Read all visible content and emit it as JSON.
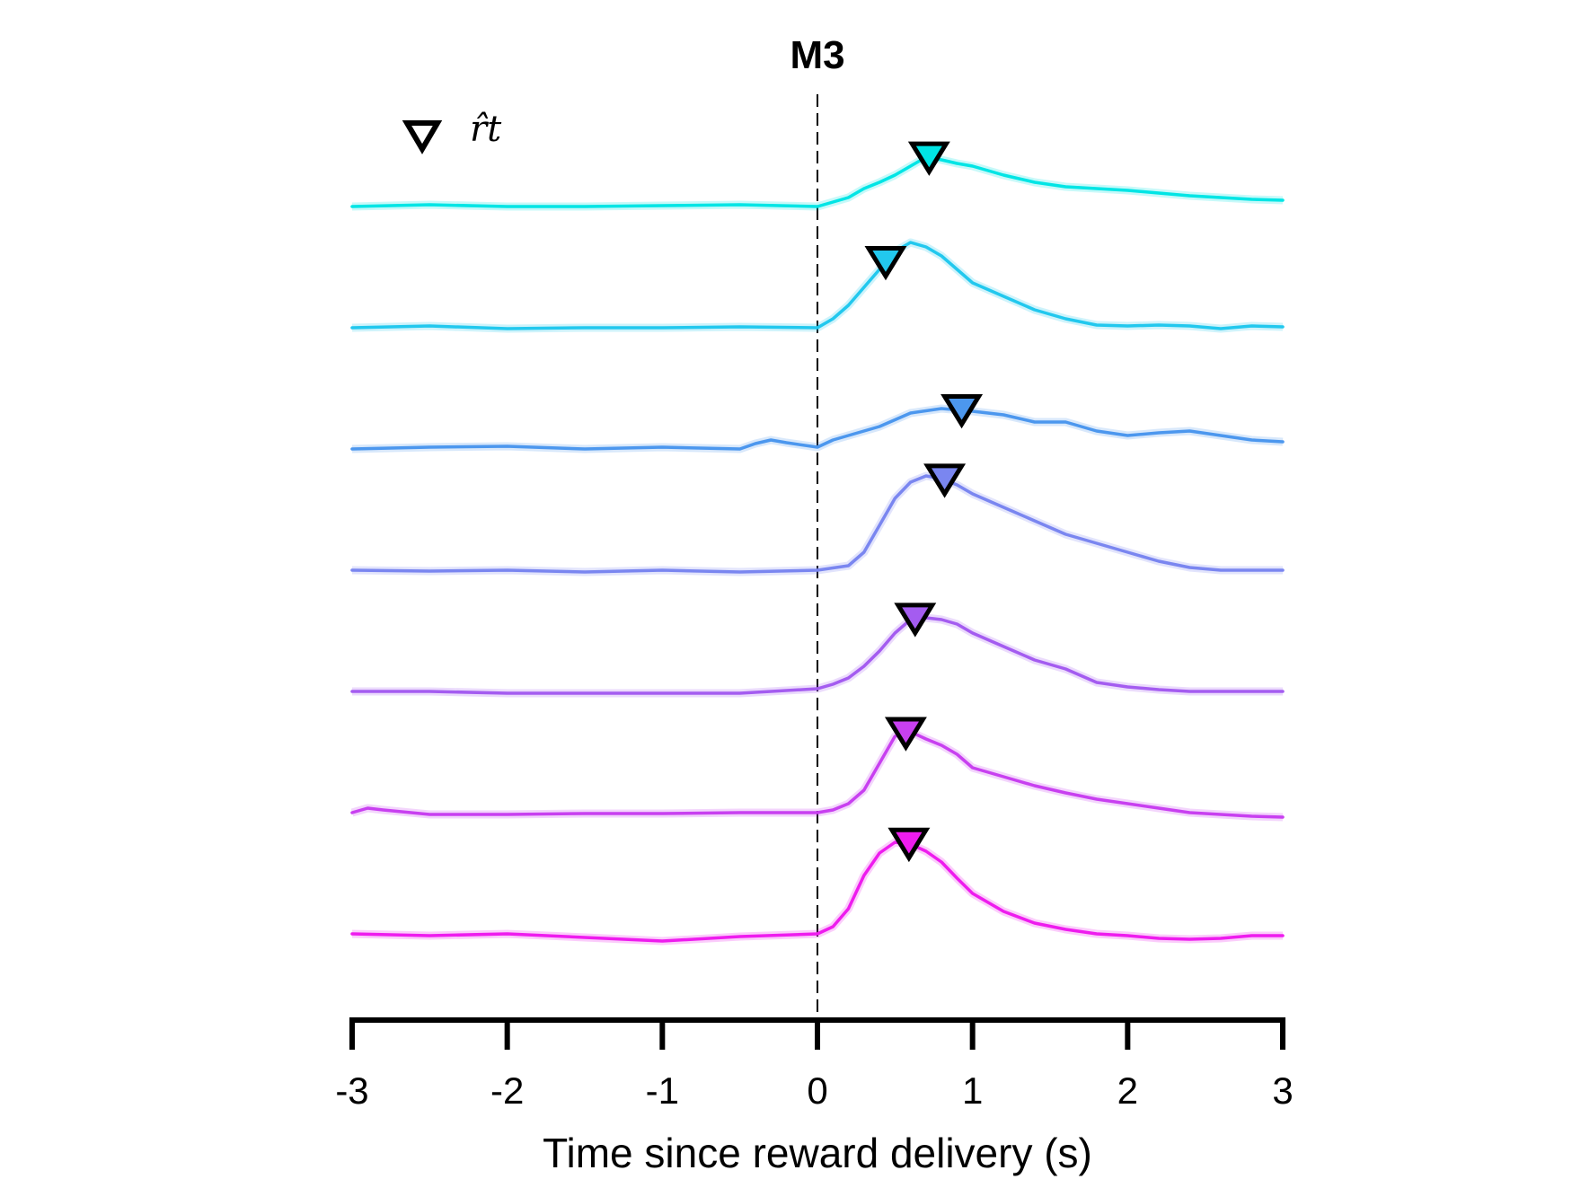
{
  "chart_data": {
    "type": "line",
    "title": "M3",
    "xlabel": "Time since reward delivery (s)",
    "ylabel": "",
    "xlim": [
      -3,
      3
    ],
    "xticks": [
      -3,
      -2,
      -1,
      0,
      1,
      2,
      3
    ],
    "xtick_labels": [
      "-3",
      "-2",
      "-1",
      "0",
      "1",
      "2",
      "3"
    ],
    "vline_x": 0,
    "vline_style": "dashed",
    "grid": false,
    "legend": {
      "marker": "downward-triangle",
      "label": "r̂t",
      "placement": "top-left"
    },
    "series": [
      {
        "color": "#00e5e5",
        "marker_x": 0.72,
        "x": [
          -3,
          -2.5,
          -2,
          -1.5,
          -1,
          -0.5,
          0,
          0.1,
          0.2,
          0.3,
          0.4,
          0.5,
          0.6,
          0.7,
          0.8,
          0.9,
          1.0,
          1.2,
          1.4,
          1.6,
          1.8,
          2.0,
          2.2,
          2.4,
          2.6,
          2.8,
          3.0
        ],
        "y": [
          0.0,
          0.02,
          0.0,
          0.0,
          0.01,
          0.02,
          0.0,
          0.05,
          0.1,
          0.2,
          0.27,
          0.35,
          0.45,
          0.55,
          0.52,
          0.48,
          0.45,
          0.35,
          0.27,
          0.22,
          0.2,
          0.18,
          0.15,
          0.12,
          0.1,
          0.08,
          0.07
        ]
      },
      {
        "color": "#22c8ee",
        "marker_x": 0.44,
        "x": [
          -3,
          -2.5,
          -2,
          -1.5,
          -1,
          -0.5,
          0,
          0.1,
          0.2,
          0.3,
          0.4,
          0.5,
          0.6,
          0.7,
          0.8,
          0.9,
          1.0,
          1.2,
          1.4,
          1.6,
          1.8,
          2.0,
          2.2,
          2.4,
          2.6,
          2.8,
          3.0
        ],
        "y": [
          0.0,
          0.02,
          -0.01,
          0.0,
          0.0,
          0.01,
          0.0,
          0.1,
          0.25,
          0.45,
          0.65,
          0.85,
          0.95,
          0.9,
          0.8,
          0.65,
          0.5,
          0.35,
          0.2,
          0.1,
          0.03,
          0.02,
          0.03,
          0.02,
          -0.01,
          0.02,
          0.01
        ]
      },
      {
        "color": "#4c97ee",
        "marker_x": 0.93,
        "x": [
          -3,
          -2.5,
          -2,
          -1.5,
          -1,
          -0.5,
          -0.4,
          -0.3,
          -0.2,
          0,
          0.1,
          0.2,
          0.4,
          0.6,
          0.8,
          1.0,
          1.2,
          1.4,
          1.6,
          1.8,
          2.0,
          2.2,
          2.4,
          2.6,
          2.8,
          3.0
        ],
        "y": [
          0.0,
          0.02,
          0.03,
          0.0,
          0.02,
          0.0,
          0.06,
          0.1,
          0.07,
          0.02,
          0.1,
          0.15,
          0.25,
          0.4,
          0.45,
          0.42,
          0.38,
          0.3,
          0.3,
          0.2,
          0.15,
          0.18,
          0.2,
          0.15,
          0.1,
          0.08
        ]
      },
      {
        "color": "#7a86f0",
        "marker_x": 0.82,
        "x": [
          -3,
          -2.5,
          -2,
          -1.5,
          -1,
          -0.5,
          0,
          0.2,
          0.3,
          0.4,
          0.5,
          0.6,
          0.7,
          0.8,
          0.9,
          1.0,
          1.2,
          1.4,
          1.6,
          1.8,
          2.0,
          2.2,
          2.4,
          2.6,
          2.8,
          3.0
        ],
        "y": [
          0.0,
          -0.01,
          0.0,
          -0.02,
          0.0,
          -0.02,
          0.0,
          0.05,
          0.2,
          0.5,
          0.8,
          0.98,
          1.05,
          1.02,
          0.95,
          0.85,
          0.7,
          0.55,
          0.4,
          0.3,
          0.2,
          0.1,
          0.03,
          0.0,
          0.0,
          0.0
        ]
      },
      {
        "color": "#a45cf0",
        "marker_x": 0.63,
        "x": [
          -3,
          -2.5,
          -2,
          -1.5,
          -1,
          -0.5,
          -0.3,
          0,
          0.1,
          0.2,
          0.3,
          0.4,
          0.5,
          0.6,
          0.7,
          0.8,
          0.9,
          1.0,
          1.2,
          1.4,
          1.6,
          1.8,
          2.0,
          2.2,
          2.4,
          2.6,
          2.8,
          3.0
        ],
        "y": [
          0.0,
          0.0,
          -0.02,
          -0.02,
          -0.02,
          -0.02,
          0.0,
          0.03,
          0.08,
          0.15,
          0.28,
          0.45,
          0.65,
          0.8,
          0.82,
          0.8,
          0.75,
          0.65,
          0.5,
          0.35,
          0.25,
          0.1,
          0.05,
          0.02,
          0.0,
          0.0,
          0.0,
          0.0
        ]
      },
      {
        "color": "#c840f0",
        "marker_x": 0.57,
        "x": [
          -3,
          -2.9,
          -2.8,
          -2.5,
          -2,
          -1.5,
          -1,
          -0.5,
          0,
          0.1,
          0.2,
          0.3,
          0.4,
          0.5,
          0.6,
          0.7,
          0.8,
          0.9,
          1.0,
          1.2,
          1.4,
          1.6,
          1.8,
          2.0,
          2.2,
          2.4,
          2.6,
          2.8,
          3.0
        ],
        "y": [
          0.0,
          0.05,
          0.03,
          -0.02,
          -0.02,
          -0.01,
          -0.01,
          0.0,
          0.0,
          0.03,
          0.1,
          0.25,
          0.55,
          0.85,
          0.9,
          0.82,
          0.75,
          0.65,
          0.5,
          0.4,
          0.3,
          0.22,
          0.15,
          0.1,
          0.05,
          0.0,
          -0.02,
          -0.04,
          -0.05
        ]
      },
      {
        "color": "#ee1cee",
        "marker_x": 0.59,
        "x": [
          -3,
          -2.5,
          -2,
          -1.5,
          -1,
          -0.5,
          0,
          0.1,
          0.2,
          0.3,
          0.4,
          0.5,
          0.6,
          0.7,
          0.8,
          0.9,
          1.0,
          1.2,
          1.4,
          1.6,
          1.8,
          2.0,
          2.2,
          2.4,
          2.6,
          2.8,
          3.0
        ],
        "y": [
          0.0,
          -0.02,
          0.0,
          -0.04,
          -0.08,
          -0.03,
          0.0,
          0.08,
          0.28,
          0.65,
          0.9,
          1.02,
          1.0,
          0.92,
          0.8,
          0.62,
          0.45,
          0.25,
          0.12,
          0.05,
          0.0,
          -0.02,
          -0.05,
          -0.06,
          -0.05,
          -0.02,
          -0.02
        ]
      }
    ]
  }
}
